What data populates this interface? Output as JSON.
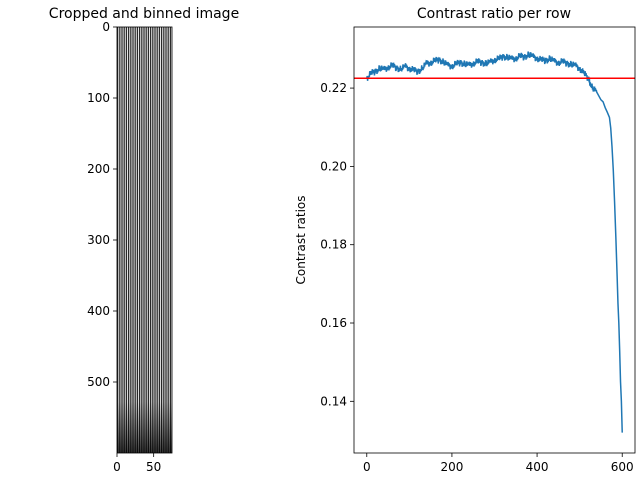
{
  "chart_data": [
    {
      "type": "heatmap",
      "title": "Cropped and binned image",
      "xlabel": "",
      "ylabel": "",
      "xlim": [
        0,
        75
      ],
      "ylim": [
        600,
        0
      ],
      "x_ticks": [
        0,
        50
      ],
      "y_ticks": [
        0,
        100,
        200,
        300,
        400,
        500
      ],
      "columns": 75,
      "rows": 600,
      "stripe_period": 3,
      "colormap": "gray"
    },
    {
      "type": "line",
      "title": "Contrast ratio per row",
      "xlabel": "",
      "ylabel": "Contrast ratios",
      "xlim": [
        -30,
        630
      ],
      "ylim": [
        0.1268,
        0.2356
      ],
      "x_ticks": [
        0,
        200,
        400,
        600
      ],
      "y_ticks": [
        0.14,
        0.16,
        0.18,
        0.2,
        0.22
      ],
      "y_tick_labels": [
        "0.14",
        "0.16",
        "0.18",
        "0.20",
        "0.22"
      ],
      "grid": false,
      "series": [
        {
          "color": "#1f77b4",
          "x": [
            0,
            10,
            20,
            30,
            40,
            50,
            60,
            70,
            80,
            90,
            100,
            110,
            120,
            130,
            140,
            150,
            160,
            170,
            180,
            190,
            200,
            210,
            220,
            230,
            240,
            250,
            260,
            270,
            280,
            290,
            300,
            310,
            320,
            330,
            340,
            350,
            360,
            370,
            380,
            390,
            400,
            410,
            420,
            430,
            440,
            450,
            460,
            470,
            480,
            490,
            500,
            510,
            520,
            530,
            540,
            550,
            555,
            560,
            565,
            570,
            573,
            576,
            579,
            582,
            585,
            588,
            590,
            592,
            594,
            596,
            598,
            600
          ],
          "y": [
            0.2225,
            0.2238,
            0.2242,
            0.225,
            0.2247,
            0.2253,
            0.2258,
            0.2251,
            0.2248,
            0.2255,
            0.225,
            0.2246,
            0.2242,
            0.225,
            0.2262,
            0.2265,
            0.227,
            0.2272,
            0.2266,
            0.2258,
            0.2256,
            0.2262,
            0.2265,
            0.2261,
            0.2258,
            0.2263,
            0.2268,
            0.2265,
            0.2262,
            0.2266,
            0.2272,
            0.2275,
            0.228,
            0.2278,
            0.2274,
            0.2276,
            0.2282,
            0.2279,
            0.2285,
            0.228,
            0.2276,
            0.2272,
            0.227,
            0.2275,
            0.2268,
            0.2265,
            0.2268,
            0.2263,
            0.226,
            0.2257,
            0.225,
            0.2238,
            0.2225,
            0.22,
            0.219,
            0.217,
            0.2165,
            0.215,
            0.2138,
            0.2125,
            0.2098,
            0.205,
            0.199,
            0.191,
            0.182,
            0.172,
            0.165,
            0.16,
            0.153,
            0.145,
            0.14,
            0.132
          ]
        }
      ],
      "hlines": [
        {
          "y": 0.2225,
          "color": "#ff0000"
        }
      ]
    }
  ]
}
